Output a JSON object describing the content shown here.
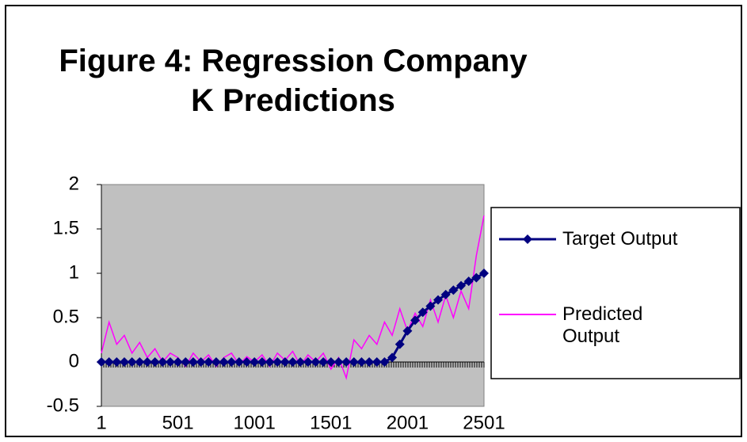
{
  "chart_data": {
    "type": "line",
    "title": "Figure 4: Regression Company K Predictions",
    "x": [
      1,
      51,
      101,
      151,
      201,
      251,
      301,
      351,
      401,
      451,
      501,
      551,
      601,
      651,
      701,
      751,
      801,
      851,
      901,
      951,
      1001,
      1051,
      1101,
      1151,
      1201,
      1251,
      1301,
      1351,
      1401,
      1451,
      1501,
      1551,
      1601,
      1651,
      1701,
      1751,
      1801,
      1851,
      1901,
      1951,
      2001,
      2051,
      2101,
      2151,
      2201,
      2251,
      2301,
      2351,
      2401,
      2451,
      2501
    ],
    "series": [
      {
        "name": "Target Output",
        "color": "#000080",
        "marker": "diamond",
        "values": [
          0,
          0,
          0,
          0,
          0,
          0,
          0,
          0,
          0,
          0,
          0,
          0,
          0,
          0,
          0,
          0,
          0,
          0,
          0,
          0,
          0,
          0,
          0,
          0,
          0,
          0,
          0,
          0,
          0,
          0,
          0,
          0,
          0,
          0,
          0,
          0,
          0,
          0,
          0.05,
          0.2,
          0.35,
          0.47,
          0.56,
          0.63,
          0.7,
          0.76,
          0.81,
          0.86,
          0.91,
          0.95,
          1
        ]
      },
      {
        "name": "Predicted Output",
        "color": "#ff00ff",
        "values": [
          0.1,
          0.45,
          0.2,
          0.3,
          0.1,
          0.22,
          0.05,
          0.15,
          0,
          0.1,
          0.05,
          -0.05,
          0.1,
          0,
          0.08,
          -0.05,
          0.05,
          0.1,
          -0.03,
          0.06,
          0,
          0.08,
          -0.05,
          0.1,
          0.02,
          0.12,
          -0.04,
          0.08,
          0,
          0.1,
          -0.08,
          0.05,
          -0.18,
          0.25,
          0.15,
          0.3,
          0.2,
          0.45,
          0.3,
          0.6,
          0.35,
          0.55,
          0.4,
          0.7,
          0.45,
          0.75,
          0.5,
          0.8,
          0.6,
          1.2,
          1.65
        ]
      }
    ],
    "xlim": [
      1,
      2501
    ],
    "xticks": [
      1,
      501,
      1001,
      1501,
      2001,
      2501
    ],
    "ylim": [
      -0.5,
      2
    ],
    "yticks": [
      -0.5,
      0,
      0.5,
      1,
      1.5,
      2
    ],
    "grid": false,
    "legend": "right"
  }
}
